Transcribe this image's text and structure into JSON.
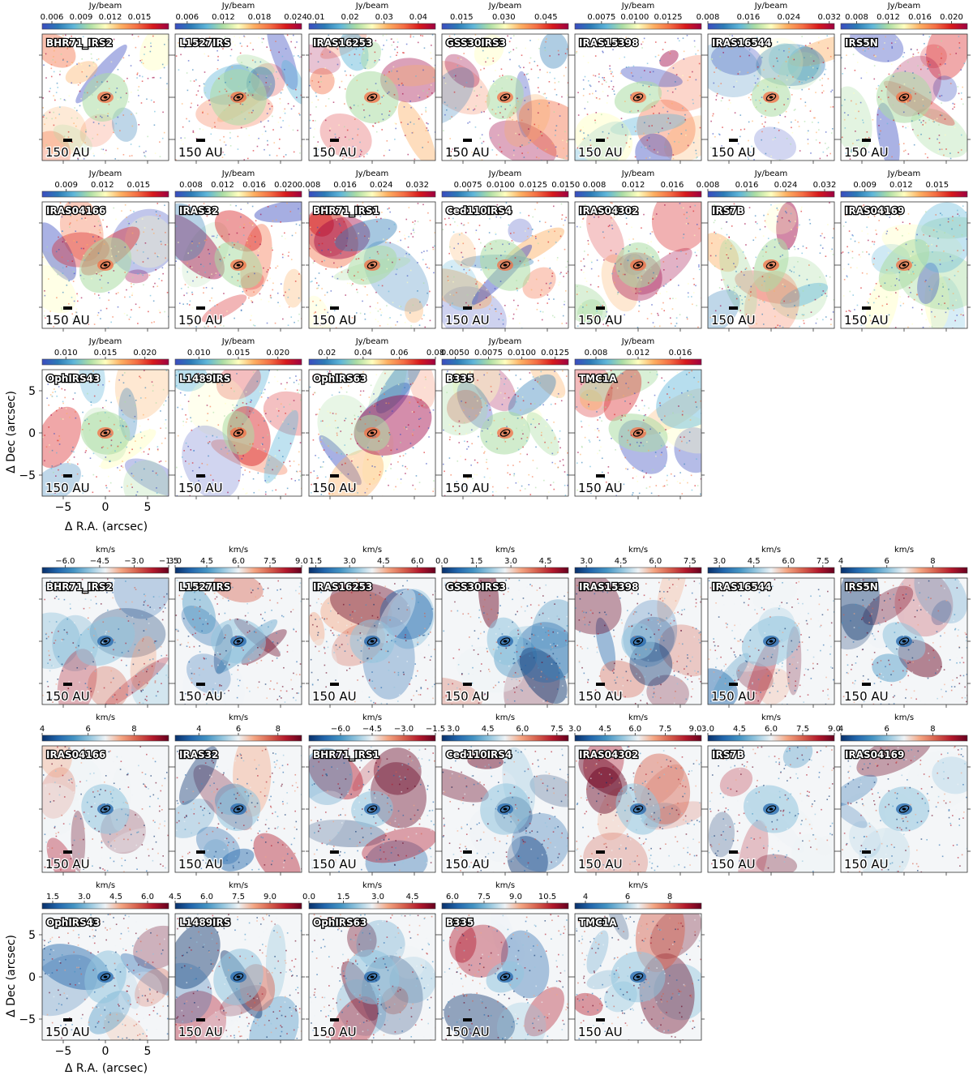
{
  "colorscales": {
    "intensity": [
      "#3b4cc0",
      "#2c7bb6",
      "#5fb6d9",
      "#abdda4",
      "#ffffbf",
      "#fdae61",
      "#f46d43",
      "#d7191c",
      "#9e0142"
    ],
    "velocity": [
      "#08306b",
      "#2166ac",
      "#4393c3",
      "#92c5de",
      "#eef3f6",
      "#f4a582",
      "#d6604d",
      "#b2182b",
      "#67001f"
    ]
  },
  "scale_bar_label": "150 AU",
  "axes": {
    "xlabel": "Δ R.A. (arcsec)",
    "ylabel": "Δ Dec (arcsec)",
    "xticks": [
      "−5",
      "0",
      "5"
    ],
    "yticks": [
      "5",
      "0",
      "−5"
    ]
  },
  "chart_data": [
    {
      "type": "heatmap",
      "quantity": "intensity",
      "panels": [
        {
          "source": "BHR71_IRS2",
          "unit": "Jy/beam",
          "ticks": [
            "0.006",
            "0.009",
            "0.012",
            "0.015"
          ],
          "cbar_range": [
            0.005,
            0.018
          ]
        },
        {
          "source": "L1527IRS",
          "unit": "Jy/beam",
          "ticks": [
            "0.006",
            "0.012",
            "0.018",
            "0.024"
          ],
          "cbar_range": [
            0.004,
            0.025
          ]
        },
        {
          "source": "IRAS16253",
          "unit": "Jy/beam",
          "ticks": [
            "0.01",
            "0.02",
            "0.03",
            "0.04"
          ],
          "cbar_range": [
            0.008,
            0.045
          ]
        },
        {
          "source": "GSS30IRS3",
          "unit": "Jy/beam",
          "ticks": [
            "0.015",
            "0.030",
            "0.045"
          ],
          "cbar_range": [
            0.008,
            0.053
          ]
        },
        {
          "source": "IRAS15398",
          "unit": "Jy/beam",
          "ticks": [
            "0.0075",
            "0.0100",
            "0.0125"
          ],
          "cbar_range": [
            0.0055,
            0.015
          ]
        },
        {
          "source": "IRAS16544",
          "unit": "Jy/beam",
          "ticks": [
            "0.008",
            "0.016",
            "0.024",
            "0.032"
          ],
          "cbar_range": [
            0.008,
            0.033
          ]
        },
        {
          "source": "IRS5N",
          "unit": "Jy/beam",
          "ticks": [
            "0.008",
            "0.012",
            "0.016",
            "0.020"
          ],
          "cbar_range": [
            0.006,
            0.022
          ]
        },
        {
          "source": "IRAS04166",
          "unit": "Jy/beam",
          "ticks": [
            "0.009",
            "0.012",
            "0.015"
          ],
          "cbar_range": [
            0.007,
            0.0175
          ]
        },
        {
          "source": "IRAS32",
          "unit": "Jy/beam",
          "ticks": [
            "0.008",
            "0.012",
            "0.016",
            "0.020"
          ],
          "cbar_range": [
            0.006,
            0.022
          ]
        },
        {
          "source": "BHR71_IRS1",
          "unit": "Jy/beam",
          "ticks": [
            "0.008",
            "0.016",
            "0.024",
            "0.032"
          ],
          "cbar_range": [
            0.008,
            0.036
          ]
        },
        {
          "source": "Ced110IRS4",
          "unit": "Jy/beam",
          "ticks": [
            "0.0075",
            "0.0100",
            "0.0125",
            "0.0150"
          ],
          "cbar_range": [
            0.0055,
            0.0152
          ]
        },
        {
          "source": "IRAS04302",
          "unit": "Jy/beam",
          "ticks": [
            "0.008",
            "0.012",
            "0.016"
          ],
          "cbar_range": [
            0.006,
            0.019
          ]
        },
        {
          "source": "IRS7B",
          "unit": "Jy/beam",
          "ticks": [
            "0.008",
            "0.016",
            "0.024",
            "0.032"
          ],
          "cbar_range": [
            0.008,
            0.034
          ]
        },
        {
          "source": "IRAS04169",
          "unit": "Jy/beam",
          "ticks": [
            "0.009",
            "0.012",
            "0.015"
          ],
          "cbar_range": [
            0.007,
            0.0175
          ]
        },
        {
          "source": "OphIRS43",
          "unit": "Jy/beam",
          "ticks": [
            "0.010",
            "0.015",
            "0.020"
          ],
          "cbar_range": [
            0.007,
            0.023
          ]
        },
        {
          "source": "L1489IRS",
          "unit": "Jy/beam",
          "ticks": [
            "0.010",
            "0.015",
            "0.020"
          ],
          "cbar_range": [
            0.007,
            0.023
          ]
        },
        {
          "source": "OphIRS63",
          "unit": "Jy/beam",
          "ticks": [
            "0.02",
            "0.04",
            "0.06",
            "0.08"
          ],
          "cbar_range": [
            0.01,
            0.08
          ]
        },
        {
          "source": "B335",
          "unit": "Jy/beam",
          "ticks": [
            "0.0050",
            "0.0075",
            "0.0100",
            "0.0125"
          ],
          "cbar_range": [
            0.004,
            0.0135
          ]
        },
        {
          "source": "TMC1A",
          "unit": "Jy/beam",
          "ticks": [
            "0.008",
            "0.012",
            "0.016"
          ],
          "cbar_range": [
            0.006,
            0.018
          ]
        }
      ]
    },
    {
      "type": "heatmap",
      "quantity": "velocity",
      "panels": [
        {
          "source": "BHR71_IRS2",
          "unit": "km/s",
          "ticks": [
            "−6.0",
            "−4.5",
            "−3.0",
            "−1.5"
          ],
          "cbar_range": [
            -7.0,
            -1.5
          ]
        },
        {
          "source": "L1527IRS",
          "unit": "km/s",
          "ticks": [
            "3.0",
            "4.5",
            "6.0",
            "7.5",
            "9.0"
          ],
          "cbar_range": [
            3.0,
            9.0
          ]
        },
        {
          "source": "IRAS16253",
          "unit": "km/s",
          "ticks": [
            "1.5",
            "3.0",
            "4.5",
            "6.0"
          ],
          "cbar_range": [
            1.2,
            6.8
          ]
        },
        {
          "source": "GSS30IRS3",
          "unit": "km/s",
          "ticks": [
            "0.0",
            "1.5",
            "3.0",
            "4.5"
          ],
          "cbar_range": [
            0.0,
            5.5
          ]
        },
        {
          "source": "IRAS15398",
          "unit": "km/s",
          "ticks": [
            "3.0",
            "4.5",
            "6.0",
            "7.5"
          ],
          "cbar_range": [
            2.5,
            8.0
          ]
        },
        {
          "source": "IRAS16544",
          "unit": "km/s",
          "ticks": [
            "3.0",
            "4.5",
            "6.0",
            "7.5"
          ],
          "cbar_range": [
            2.5,
            8.0
          ]
        },
        {
          "source": "IRS5N",
          "unit": "km/s",
          "ticks": [
            "4",
            "6",
            "8"
          ],
          "cbar_range": [
            4.0,
            9.5
          ]
        },
        {
          "source": "IRAS04166",
          "unit": "km/s",
          "ticks": [
            "4",
            "6",
            "8"
          ],
          "cbar_range": [
            4.0,
            9.5
          ]
        },
        {
          "source": "IRAS32",
          "unit": "km/s",
          "ticks": [
            "4",
            "6",
            "8"
          ],
          "cbar_range": [
            2.8,
            9.2
          ]
        },
        {
          "source": "BHR71_IRS1",
          "unit": "km/s",
          "ticks": [
            "−6.0",
            "−4.5",
            "−3.0",
            "−1.5"
          ],
          "cbar_range": [
            -7.5,
            -1.5
          ]
        },
        {
          "source": "Ced110IRS4",
          "unit": "km/s",
          "ticks": [
            "3.0",
            "4.5",
            "6.0",
            "7.5"
          ],
          "cbar_range": [
            2.5,
            8.0
          ]
        },
        {
          "source": "IRAS04302",
          "unit": "km/s",
          "ticks": [
            "3.0",
            "4.5",
            "6.0",
            "7.5",
            "9.0"
          ],
          "cbar_range": [
            3.0,
            9.3
          ]
        },
        {
          "source": "IRS7B",
          "unit": "km/s",
          "ticks": [
            "3.0",
            "4.5",
            "6.0",
            "7.5",
            "9.0"
          ],
          "cbar_range": [
            3.0,
            9.0
          ]
        },
        {
          "source": "IRAS04169",
          "unit": "km/s",
          "ticks": [
            "4",
            "6",
            "8"
          ],
          "cbar_range": [
            4.0,
            9.5
          ]
        },
        {
          "source": "OphIRS43",
          "unit": "km/s",
          "ticks": [
            "1.5",
            "3.0",
            "4.5",
            "6.0"
          ],
          "cbar_range": [
            1.0,
            7.0
          ]
        },
        {
          "source": "L1489IRS",
          "unit": "km/s",
          "ticks": [
            "4.5",
            "6.0",
            "7.5",
            "9.0"
          ],
          "cbar_range": [
            4.5,
            10.5
          ]
        },
        {
          "source": "OphIRS63",
          "unit": "km/s",
          "ticks": [
            "0.0",
            "1.5",
            "3.0",
            "4.5"
          ],
          "cbar_range": [
            0.0,
            5.5
          ]
        },
        {
          "source": "B335",
          "unit": "km/s",
          "ticks": [
            "6.0",
            "7.5",
            "9.0",
            "10.5"
          ],
          "cbar_range": [
            5.5,
            11.5
          ]
        },
        {
          "source": "TMC1A",
          "unit": "km/s",
          "ticks": [
            "4",
            "6",
            "8"
          ],
          "cbar_range": [
            3.5,
            9.5
          ]
        }
      ]
    }
  ]
}
